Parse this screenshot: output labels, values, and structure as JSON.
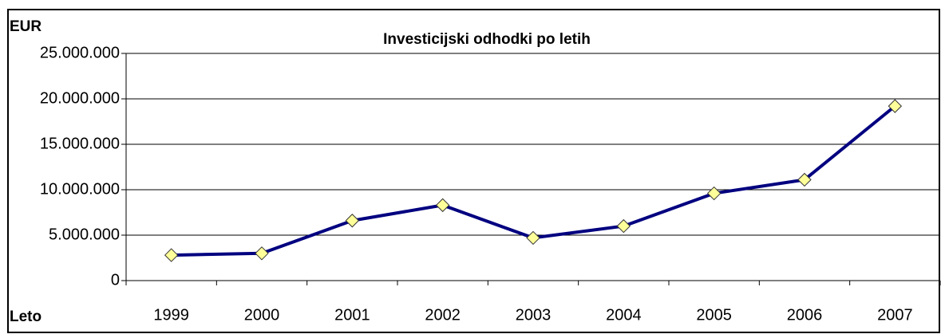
{
  "chart_data": {
    "type": "line",
    "title": "Investicijski odhodki po letih",
    "y_label": "EUR",
    "x_label": "Leto",
    "categories": [
      "1999",
      "2000",
      "2001",
      "2002",
      "2003",
      "2004",
      "2005",
      "2006",
      "2007"
    ],
    "values": [
      2800000,
      3000000,
      6600000,
      8300000,
      4700000,
      6000000,
      9600000,
      11100000,
      19200000
    ],
    "color": "#000080",
    "marker_color": "#ffff99",
    "ylim": [
      0,
      25000000
    ],
    "yticks": [
      0,
      {
        "value": 5000000,
        "label": "5.000.000"
      },
      {
        "value": 10000000,
        "label": "10.000.000"
      },
      {
        "value": 15000000,
        "label": "15.000.000"
      },
      {
        "value": 20000000,
        "label": "20.000.000"
      },
      {
        "value": 25000000,
        "label": "25.000.000"
      }
    ],
    "grid": true
  }
}
